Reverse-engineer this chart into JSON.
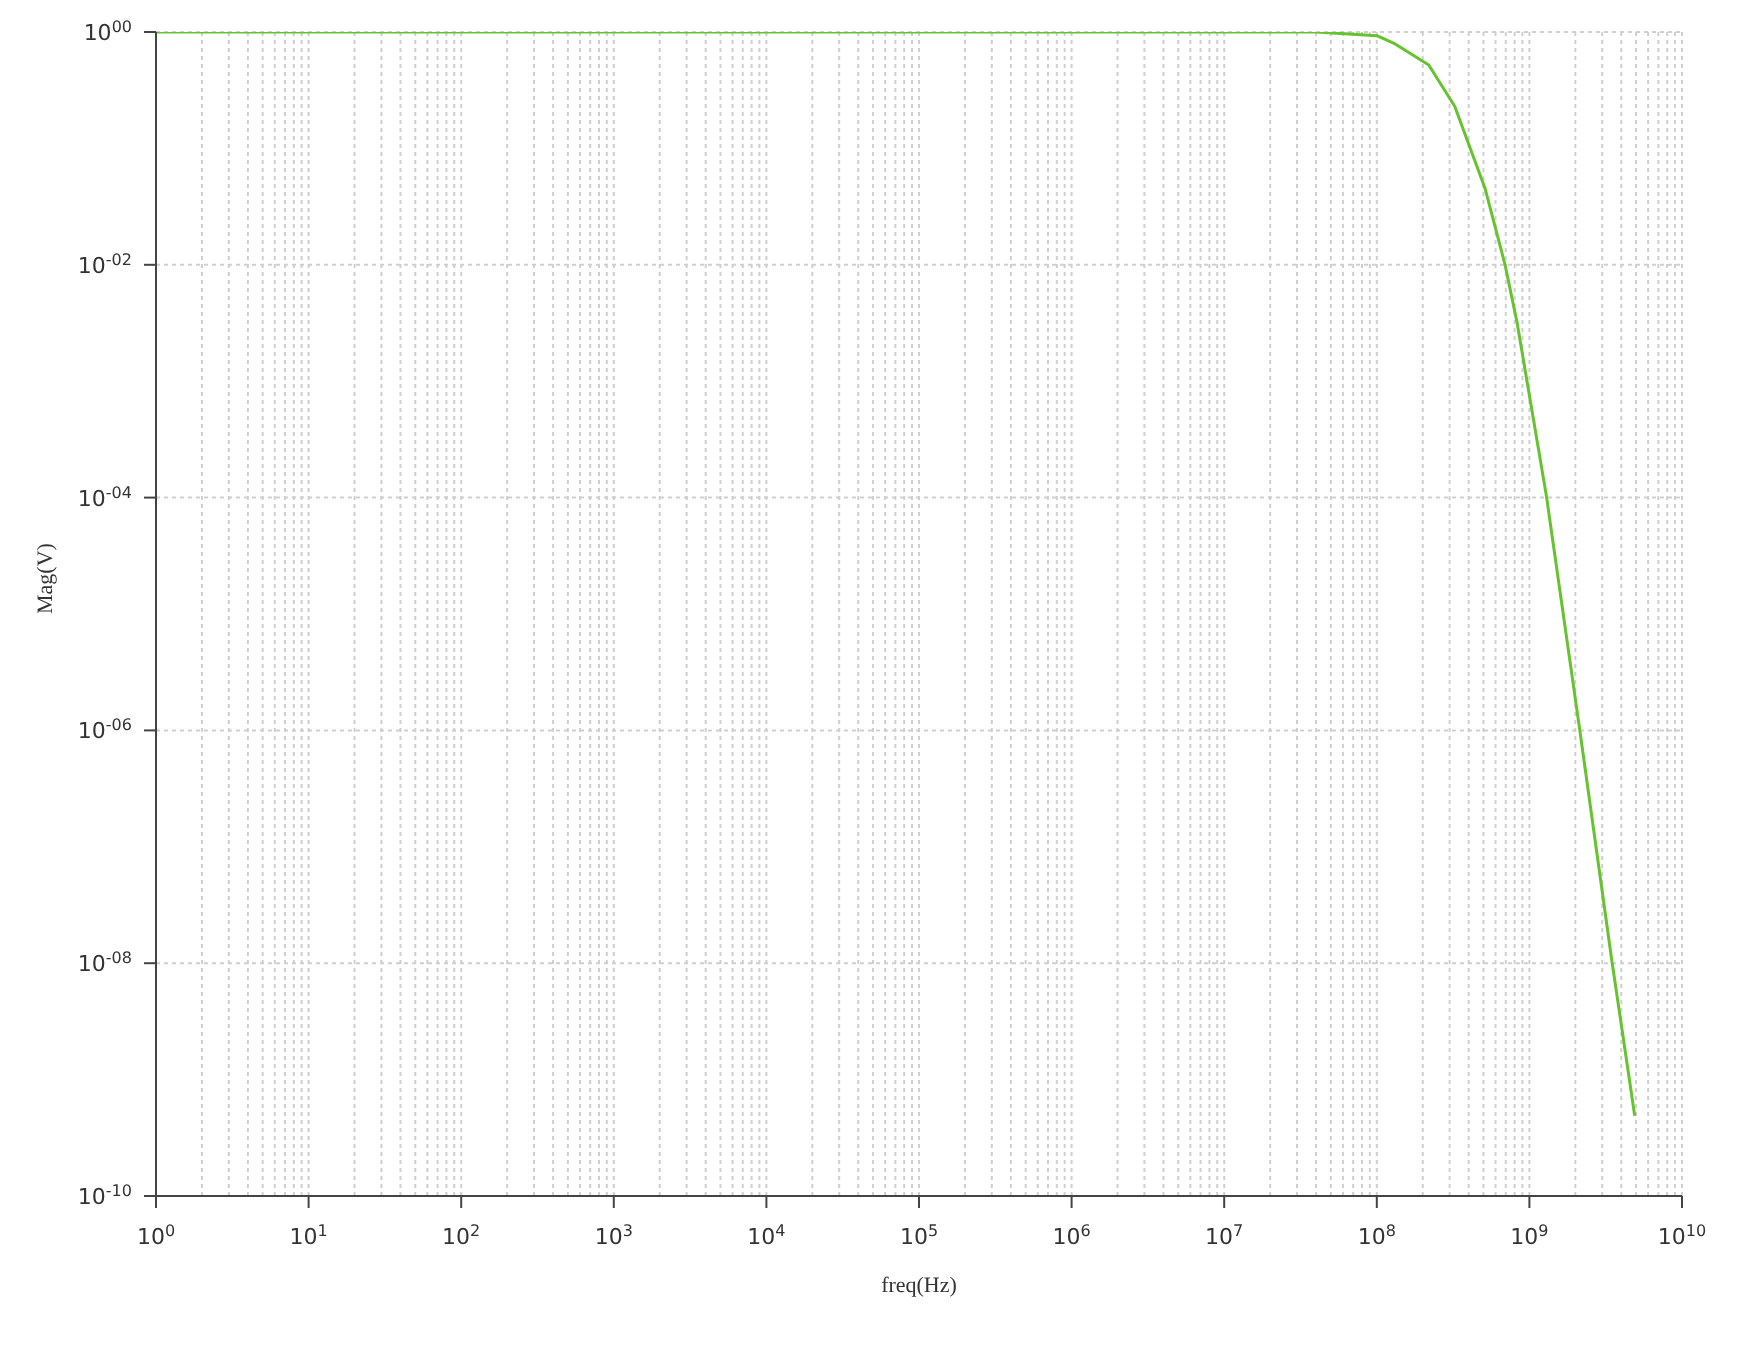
{
  "chart_data": {
    "type": "line",
    "xlabel": "freq(Hz)",
    "ylabel": "Mag(V)",
    "log": "xy",
    "grid": true,
    "marker": "none",
    "x": [
      1,
      10000000,
      40000000,
      100000000,
      132000000,
      219000000,
      324000000,
      513000000,
      690000000,
      830000000,
      1290000000,
      2140000000,
      3470000000,
      4900000000
    ],
    "series": [
      {
        "color": "#66c22e",
        "values": [
          1,
          1,
          1,
          0.93,
          0.79,
          0.52,
          0.23,
          0.045,
          0.0102,
          0.0032,
          0.000105,
          1e-06,
          1.05e-08,
          4.9e-10
        ]
      }
    ],
    "xlim": [
      1,
      10000000000
    ],
    "ylim": [
      1e-10,
      1
    ],
    "xticks": [
      {
        "value": 1,
        "label": "10$^{0}$"
      },
      {
        "value": 10,
        "label": "10$^{1}$"
      },
      {
        "value": 100,
        "label": "10$^{2}$"
      },
      {
        "value": 1000,
        "label": "10$^{3}$"
      },
      {
        "value": 10000,
        "label": "10$^{4}$"
      },
      {
        "value": 100000,
        "label": "10$^{5}$"
      },
      {
        "value": 1000000,
        "label": "10$^{6}$"
      },
      {
        "value": 10000000,
        "label": "10$^{7}$"
      },
      {
        "value": 100000000,
        "label": "10$^{8}$"
      },
      {
        "value": 1000000000,
        "label": "10$^{9}$"
      },
      {
        "value": 10000000000,
        "label": "10$^{10}$"
      }
    ],
    "yticks": [
      {
        "value": 1,
        "label": "10$^{00}$"
      },
      {
        "value": 0.01,
        "label": "10$^{-02}$"
      },
      {
        "value": 0.0001,
        "label": "10$^{-04}$"
      },
      {
        "value": 1e-06,
        "label": "10$^{-06}$"
      },
      {
        "value": 1e-08,
        "label": "10$^{-08}$"
      },
      {
        "value": 1e-10,
        "label": "10$^{-10}$"
      }
    ]
  }
}
